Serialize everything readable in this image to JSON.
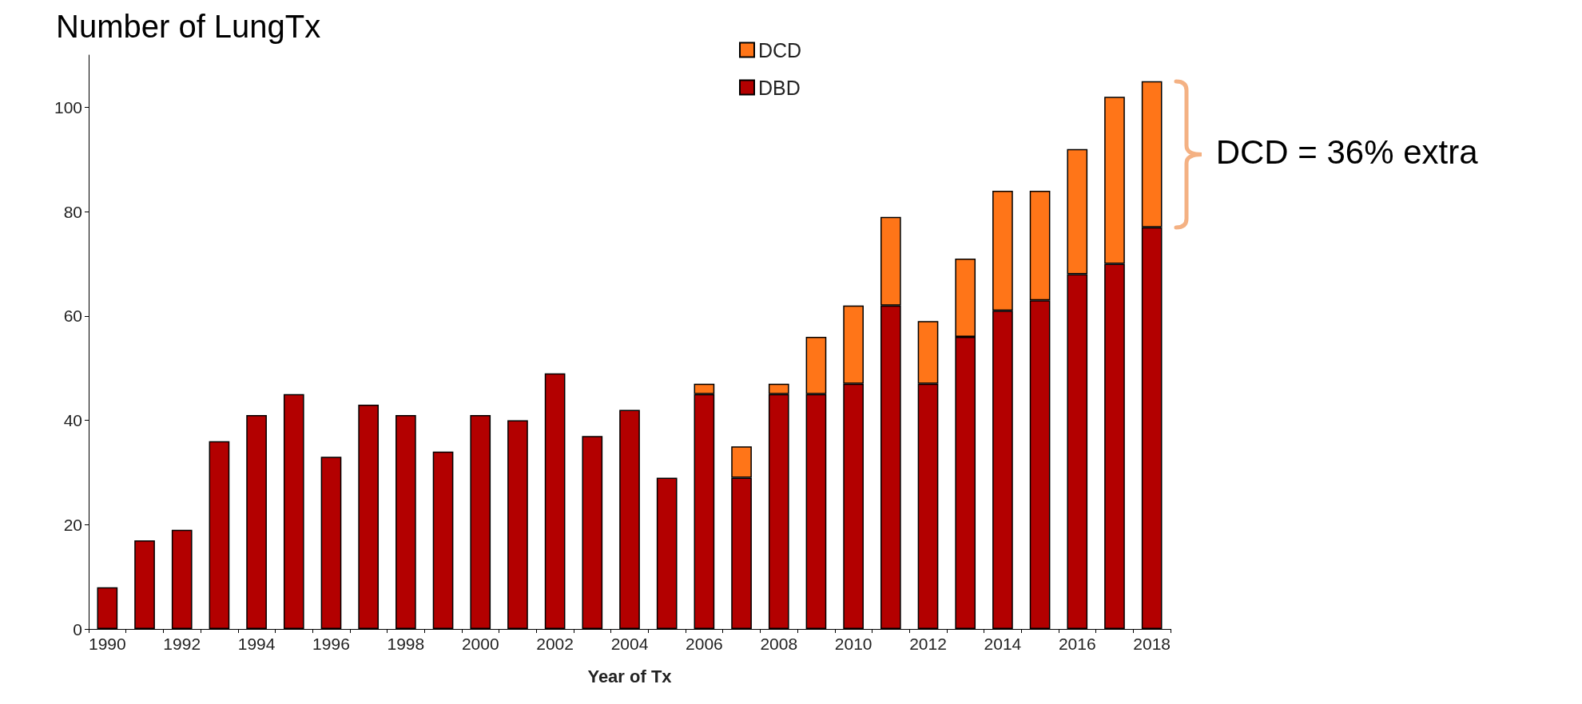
{
  "chart_data": {
    "type": "bar",
    "title": "Number of LungTx",
    "xlabel": "Year of Tx",
    "stacked": true,
    "categories": [
      "1990",
      null,
      "1992",
      null,
      "1994",
      null,
      "1996",
      null,
      "1998",
      null,
      "2000",
      null,
      "2002",
      null,
      "2004",
      null,
      "2006",
      null,
      "2008",
      null,
      "2010",
      null,
      "2012",
      null,
      "2014",
      null,
      "2016",
      null,
      "2018"
    ],
    "series": [
      {
        "name": "DBD",
        "color": "#b30000",
        "values": [
          8,
          17,
          19,
          36,
          41,
          45,
          33,
          43,
          41,
          34,
          41,
          40,
          49,
          37,
          42,
          29,
          45,
          29,
          45,
          45,
          47,
          62,
          47,
          56,
          61,
          63,
          68,
          70,
          77
        ]
      },
      {
        "name": "DCD",
        "color": "#ff7518",
        "values": [
          null,
          null,
          null,
          null,
          null,
          null,
          null,
          null,
          null,
          null,
          null,
          null,
          null,
          null,
          null,
          null,
          2,
          6,
          2,
          11,
          15,
          17,
          12,
          15,
          23,
          21,
          24,
          32,
          28
        ]
      }
    ],
    "ylim": [
      0,
      110
    ],
    "yticks": [
      0,
      20,
      40,
      60,
      80,
      100
    ],
    "grid": false,
    "legend": "top",
    "annotations": [
      "DCD = 36% extra"
    ]
  }
}
